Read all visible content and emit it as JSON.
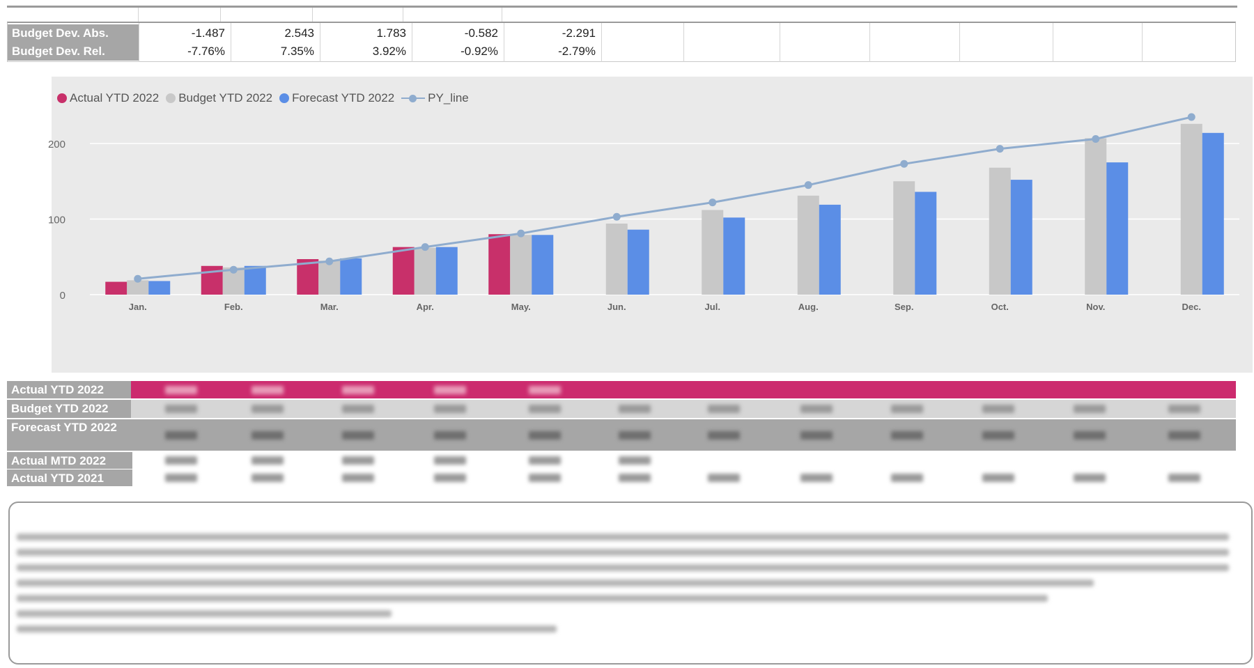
{
  "deviation_table": {
    "rows": [
      {
        "label": "Budget Dev. Abs.",
        "values": [
          "-1.487",
          "2.543",
          "1.783",
          "-0.582",
          "-2.291"
        ]
      },
      {
        "label": "Budget Dev. Rel.",
        "values": [
          "-7.76%",
          "7.35%",
          "3.92%",
          "-0.92%",
          "-2.79%"
        ]
      }
    ]
  },
  "chart_data": {
    "type": "bar",
    "categories": [
      "Jan.",
      "Feb.",
      "Mar.",
      "Apr.",
      "May.",
      "Jun.",
      "Jul.",
      "Aug.",
      "Sep.",
      "Oct.",
      "Nov.",
      "Dec."
    ],
    "series": [
      {
        "name": "Actual YTD 2022",
        "type": "bar",
        "color": "#c8306a",
        "values": [
          17,
          38,
          47,
          63,
          80,
          null,
          null,
          null,
          null,
          null,
          null,
          null
        ]
      },
      {
        "name": "Budget YTD 2022",
        "type": "bar",
        "color": "#c8c8c8",
        "values": [
          19,
          36,
          45,
          62,
          79,
          94,
          112,
          131,
          150,
          168,
          207,
          226
        ]
      },
      {
        "name": "Forecast YTD 2022",
        "type": "bar",
        "color": "#5b8ee6",
        "values": [
          18,
          38,
          48,
          63,
          79,
          86,
          102,
          119,
          136,
          152,
          175,
          214
        ]
      },
      {
        "name": "PY_line",
        "type": "line",
        "color": "#8facce",
        "values": [
          21,
          33,
          44,
          63,
          81,
          103,
          122,
          145,
          173,
          193,
          206,
          235
        ]
      }
    ],
    "yticks": [
      0,
      100,
      200
    ],
    "ylim": [
      0,
      250
    ],
    "legend_position": "top-left",
    "grid": true
  },
  "values_table": {
    "rows": [
      {
        "label": "Actual YTD 2022",
        "color": "#cc2b6e"
      },
      {
        "label": "Budget YTD 2022",
        "color": "#d6d6d6"
      },
      {
        "label": "Forecast YTD 2022",
        "color": "#a6a6a6"
      },
      {
        "label": "Actual MTD 2022",
        "color": "#ffffff"
      },
      {
        "label": "Actual YTD 2021",
        "color": "#ffffff"
      }
    ],
    "note": "cell values are blurred/redacted in the original"
  },
  "comment": {
    "note": "text is blurred/redacted in the original"
  }
}
